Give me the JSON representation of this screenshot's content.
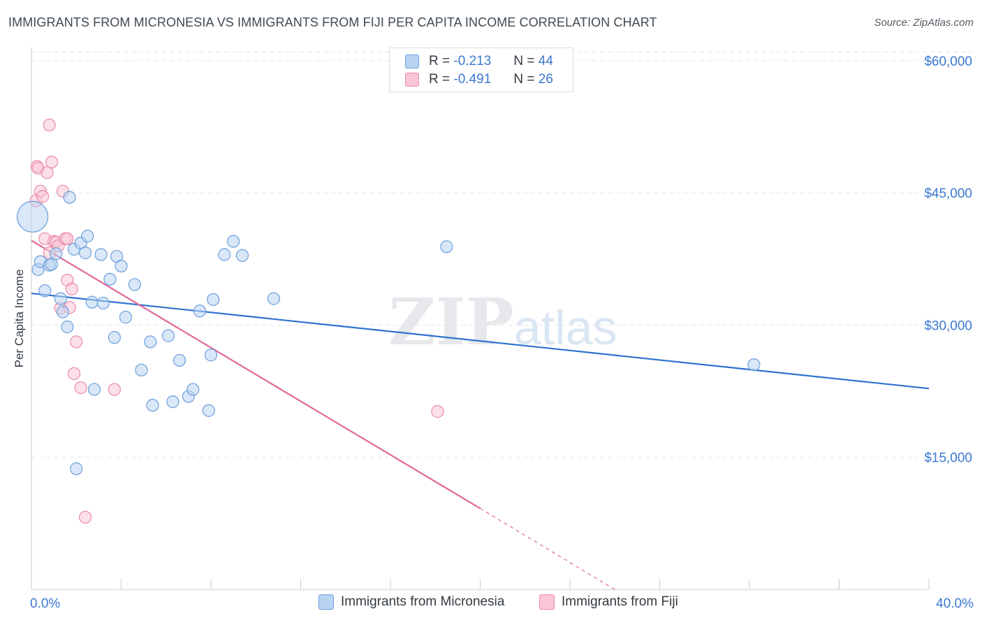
{
  "title": "IMMIGRANTS FROM MICRONESIA VS IMMIGRANTS FROM FIJI PER CAPITA INCOME CORRELATION CHART",
  "source": "Source: ZipAtlas.com",
  "watermark": "ZIPatlas",
  "legend": {
    "rows": [
      {
        "r_label": "R =",
        "r_value": "-0.213",
        "n_label": "N =",
        "n_value": "44"
      },
      {
        "r_label": "R =",
        "r_value": "-0.491",
        "n_label": "N =",
        "n_value": "26"
      }
    ]
  },
  "colors": {
    "micronesia_fill": "#b9d3f3",
    "micronesia_stroke": "#6b9fdc",
    "micronesia_line": "#2f72cf",
    "fiji_fill": "#f9c6d6",
    "fiji_stroke": "#e98aaa",
    "fiji_line": "#e0689a",
    "axis_text": "#3b78d0",
    "grid": "#e3e6ea"
  },
  "chart_data": {
    "type": "scatter",
    "title": "IMMIGRANTS FROM MICRONESIA VS IMMIGRANTS FROM FIJI PER CAPITA INCOME CORRELATION CHART",
    "xlabel": "",
    "ylabel": "Per Capita Income",
    "xlim": [
      0,
      40
    ],
    "ylim": [
      0,
      61500
    ],
    "x_tick_labels": [
      "0.0%",
      "40.0%"
    ],
    "y_ticks": [
      15000,
      30000,
      45000,
      60000
    ],
    "y_tick_labels": [
      "$15,000",
      "$30,000",
      "$45,000",
      "$60,000"
    ],
    "grid": true,
    "legend_position": "bottom",
    "series": [
      {
        "name": "Immigrants from Micronesia",
        "points": [
          {
            "x": 0.05,
            "y": 42300,
            "big": true
          },
          {
            "x": 0.3,
            "y": 36300
          },
          {
            "x": 0.4,
            "y": 37200
          },
          {
            "x": 0.6,
            "y": 33900
          },
          {
            "x": 0.8,
            "y": 36800
          },
          {
            "x": 0.9,
            "y": 36900
          },
          {
            "x": 1.1,
            "y": 38100
          },
          {
            "x": 1.3,
            "y": 33000
          },
          {
            "x": 1.4,
            "y": 31500
          },
          {
            "x": 1.6,
            "y": 29800
          },
          {
            "x": 1.7,
            "y": 44500
          },
          {
            "x": 1.9,
            "y": 38600
          },
          {
            "x": 2.2,
            "y": 39300
          },
          {
            "x": 2.4,
            "y": 38200
          },
          {
            "x": 2.5,
            "y": 40100
          },
          {
            "x": 2.7,
            "y": 32600
          },
          {
            "x": 2.8,
            "y": 22700
          },
          {
            "x": 3.1,
            "y": 38000
          },
          {
            "x": 3.2,
            "y": 32500
          },
          {
            "x": 3.5,
            "y": 35200
          },
          {
            "x": 3.7,
            "y": 28600
          },
          {
            "x": 3.8,
            "y": 37800
          },
          {
            "x": 4.0,
            "y": 36700
          },
          {
            "x": 4.2,
            "y": 30900
          },
          {
            "x": 4.6,
            "y": 34600
          },
          {
            "x": 4.9,
            "y": 24900
          },
          {
            "x": 5.3,
            "y": 28100
          },
          {
            "x": 5.4,
            "y": 20900
          },
          {
            "x": 6.1,
            "y": 28800
          },
          {
            "x": 6.3,
            "y": 21300
          },
          {
            "x": 6.6,
            "y": 26000
          },
          {
            "x": 7.0,
            "y": 21900
          },
          {
            "x": 7.2,
            "y": 22700
          },
          {
            "x": 7.5,
            "y": 31600
          },
          {
            "x": 7.9,
            "y": 20300
          },
          {
            "x": 8.0,
            "y": 26600
          },
          {
            "x": 8.1,
            "y": 32900
          },
          {
            "x": 8.6,
            "y": 38000
          },
          {
            "x": 9.0,
            "y": 39500
          },
          {
            "x": 9.4,
            "y": 37900
          },
          {
            "x": 10.8,
            "y": 33000
          },
          {
            "x": 2.0,
            "y": 13700
          },
          {
            "x": 18.5,
            "y": 38900
          },
          {
            "x": 32.2,
            "y": 25500
          }
        ],
        "trend": {
          "x": [
            0,
            40
          ],
          "y": [
            33600,
            22800
          ]
        }
      },
      {
        "name": "Immigrants from Fiji",
        "points": [
          {
            "x": 0.2,
            "y": 44100
          },
          {
            "x": 0.25,
            "y": 48000
          },
          {
            "x": 0.3,
            "y": 47800
          },
          {
            "x": 0.4,
            "y": 45200
          },
          {
            "x": 0.5,
            "y": 44600
          },
          {
            "x": 0.6,
            "y": 39800
          },
          {
            "x": 0.7,
            "y": 47300
          },
          {
            "x": 0.8,
            "y": 38200
          },
          {
            "x": 0.8,
            "y": 52700
          },
          {
            "x": 0.9,
            "y": 48500
          },
          {
            "x": 1.0,
            "y": 39500
          },
          {
            "x": 1.1,
            "y": 39400
          },
          {
            "x": 1.2,
            "y": 39000
          },
          {
            "x": 1.3,
            "y": 31900
          },
          {
            "x": 1.4,
            "y": 45200
          },
          {
            "x": 1.5,
            "y": 39800
          },
          {
            "x": 1.6,
            "y": 35100
          },
          {
            "x": 1.6,
            "y": 39800
          },
          {
            "x": 1.7,
            "y": 32000
          },
          {
            "x": 1.8,
            "y": 34100
          },
          {
            "x": 1.9,
            "y": 24500
          },
          {
            "x": 2.0,
            "y": 28100
          },
          {
            "x": 2.2,
            "y": 22900
          },
          {
            "x": 2.4,
            "y": 8200
          },
          {
            "x": 3.7,
            "y": 22700
          },
          {
            "x": 18.1,
            "y": 20200
          }
        ],
        "trend": {
          "x": [
            0,
            20
          ],
          "y": [
            39600,
            9200
          ]
        },
        "trend_dashed": {
          "x": [
            20,
            26
          ],
          "y": [
            9200,
            0
          ]
        }
      }
    ]
  }
}
